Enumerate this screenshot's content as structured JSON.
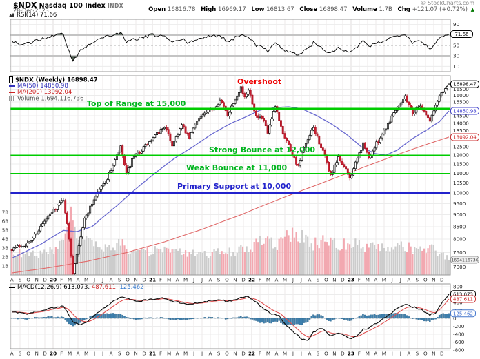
{
  "header": {
    "symbol": "$NDX",
    "name": "Nasdaq 100 Index",
    "exchange": "INDX",
    "date": "28-Dec-2023",
    "copyright": "© StockCharts.com",
    "quote": {
      "open_label": "Open",
      "open_value": "16816.78",
      "high_label": "High",
      "high_value": "16969.17",
      "low_label": "Low",
      "low_value": "16813.67",
      "close_label": "Close",
      "close_value": "16898.47",
      "volume_label": "Volume",
      "volume_value": "1.7B",
      "chg_label": "Chg",
      "chg_value": "+121.07 (+0.72%)",
      "chg_arrow": "▲"
    }
  },
  "rsi_panel": {
    "legend": "RSI(14) 71.66",
    "value_box": "71.66",
    "ticks": [
      90,
      70,
      50,
      30,
      10
    ]
  },
  "main_panel": {
    "legend": {
      "price": "$NDX (Weekly) 16898.47",
      "ma50": "MA(50) 14850.98",
      "ma200": "MA(200) 13092.04",
      "volume": "Volume 1,694,116,736"
    },
    "annotations": {
      "overshoot": "Overshoot",
      "top_of_range": "Top of Range at 15,000",
      "strong_bounce": "Strong Bounce at 12,000",
      "weak_bounce": "Weak Bounce at 11,000",
      "primary_support": "Primary Support at 10,000"
    },
    "price_ticks": [
      16500,
      16000,
      15500,
      15000,
      14500,
      14000,
      13500,
      13000,
      12500,
      12000,
      11500,
      11000,
      10500,
      10000,
      9500,
      9000,
      8500,
      8000,
      7500,
      7000
    ],
    "volume_ticks": [
      "7B",
      "6B",
      "5B",
      "4B",
      "3B",
      "2B",
      "1B"
    ],
    "price_box": "16898.47",
    "ma50_box": "14850.98",
    "ma200_box": "13092.04",
    "volume_box": "1694116736"
  },
  "xaxis": {
    "labels": [
      "A",
      "S",
      "O",
      "N",
      "D",
      "20",
      "F",
      "M",
      "A",
      "M",
      "J",
      "J",
      "A",
      "S",
      "O",
      "N",
      "D",
      "21",
      "F",
      "M",
      "A",
      "M",
      "J",
      "J",
      "A",
      "S",
      "O",
      "N",
      "D",
      "22",
      "F",
      "M",
      "A",
      "M",
      "J",
      "J",
      "A",
      "S",
      "O",
      "N",
      "D",
      "23",
      "F",
      "M",
      "A",
      "M",
      "J",
      "J",
      "A",
      "S",
      "O",
      "N",
      "D"
    ]
  },
  "macd_panel": {
    "legend_name": "MACD(12,26,9)",
    "legend_v1": "613.073,",
    "legend_v2": "487.611,",
    "legend_v3": "125.462",
    "ticks": [
      800,
      600,
      400,
      200,
      0,
      -200,
      -400,
      -600,
      -800
    ],
    "box1": "613.073",
    "box2": "487.611",
    "box3": "125.462"
  },
  "colors": {
    "up_candle_fill": "#ffffff",
    "up_candle_stroke": "#000000",
    "down_candle_fill": "#cc2233",
    "down_candle_stroke": "#aa1122",
    "ma50": "#6a6ad0",
    "ma200": "#e06a6a",
    "level_green": "#00cc00",
    "level_blue": "#2222cc",
    "annotation_red": "#ee0000",
    "annotation_green": "#00b41e",
    "annotation_blue": "#2222cc",
    "hist_fill": "#3d7fad",
    "hist_stroke": "#2b5f83",
    "macd_line": "#111111",
    "signal_line": "#e05050",
    "rsi_line": "#000000",
    "rsi_fill": "#4e5d50",
    "vol_up": "#cccccc",
    "vol_down": "#f2a8b0",
    "grid": "#ececec",
    "panel_border": "#9a9a9a"
  },
  "chart_data": {
    "type": "candlestick",
    "title": "$NDX Nasdaq 100 Index (Weekly)",
    "timeframe": "weekly",
    "x_range": "Aug 2019 - Dec 2023",
    "weeks": 230,
    "log_scale": true,
    "price_axis_range": [
      6740,
      17300
    ],
    "ohlc_latest": {
      "open": 16816.78,
      "high": 16969.17,
      "low": 16813.67,
      "close": 16898.47
    },
    "indicators": {
      "rsi": {
        "period": 14,
        "last": 71.66
      },
      "ma50_last": 14850.98,
      "ma200_last": 13092.04,
      "macd": {
        "params": [
          12,
          26,
          9
        ],
        "macd": 613.073,
        "signal": 487.611,
        "hist": 125.462
      },
      "volume_last": 1694116736
    },
    "levels": [
      {
        "price": 15000,
        "label": "Top of Range at 15,000",
        "color": "#00cc00",
        "width": 2.6
      },
      {
        "price": 12000,
        "label": "Strong Bounce at 12,000",
        "color": "#00cc00",
        "width": 1.8
      },
      {
        "price": 11000,
        "label": "Weak Bounce at 11,000",
        "color": "#00cc00",
        "width": 1.1
      },
      {
        "price": 10000,
        "label": "Primary Support at 10,000",
        "color": "#2222cc",
        "width": 2.6
      }
    ],
    "close_keypoints": [
      [
        0,
        7650
      ],
      [
        9,
        7850
      ],
      [
        17,
        8700
      ],
      [
        27,
        9720
      ],
      [
        32,
        6830
      ],
      [
        38,
        8800
      ],
      [
        45,
        10050
      ],
      [
        50,
        10700
      ],
      [
        57,
        12440
      ],
      [
        60,
        10940
      ],
      [
        63,
        11700
      ],
      [
        66,
        12100
      ],
      [
        73,
        12870
      ],
      [
        80,
        13800
      ],
      [
        84,
        12610
      ],
      [
        89,
        13850
      ],
      [
        93,
        13000
      ],
      [
        97,
        14250
      ],
      [
        106,
        15100
      ],
      [
        109,
        15650
      ],
      [
        113,
        14570
      ],
      [
        120,
        16680
      ],
      [
        122,
        15750
      ],
      [
        124,
        16560
      ],
      [
        128,
        14450
      ],
      [
        132,
        14200
      ],
      [
        134,
        13300
      ],
      [
        138,
        15150
      ],
      [
        142,
        13400
      ],
      [
        146,
        12330
      ],
      [
        150,
        11330
      ],
      [
        152,
        12100
      ],
      [
        158,
        13670
      ],
      [
        164,
        11870
      ],
      [
        167,
        10860
      ],
      [
        171,
        11820
      ],
      [
        173,
        11550
      ],
      [
        177,
        10740
      ],
      [
        180,
        11500
      ],
      [
        184,
        12660
      ],
      [
        187,
        11830
      ],
      [
        193,
        13100
      ],
      [
        197,
        13950
      ],
      [
        201,
        15000
      ],
      [
        206,
        15930
      ],
      [
        210,
        14700
      ],
      [
        214,
        15320
      ],
      [
        219,
        14120
      ],
      [
        224,
        15980
      ],
      [
        227,
        16620
      ],
      [
        229,
        16898.47
      ]
    ],
    "ma50_keypoints": [
      [
        0,
        7300
      ],
      [
        15,
        7800
      ],
      [
        27,
        8350
      ],
      [
        34,
        8300
      ],
      [
        42,
        8500
      ],
      [
        55,
        9400
      ],
      [
        65,
        10200
      ],
      [
        75,
        11000
      ],
      [
        85,
        11800
      ],
      [
        95,
        12500
      ],
      [
        105,
        13300
      ],
      [
        115,
        14000
      ],
      [
        122,
        14400
      ],
      [
        130,
        14900
      ],
      [
        138,
        15100
      ],
      [
        145,
        15150
      ],
      [
        152,
        15000
      ],
      [
        160,
        14500
      ],
      [
        168,
        13900
      ],
      [
        176,
        13200
      ],
      [
        183,
        12500
      ],
      [
        190,
        12100
      ],
      [
        196,
        12000
      ],
      [
        202,
        12300
      ],
      [
        210,
        13000
      ],
      [
        218,
        13600
      ],
      [
        224,
        14100
      ],
      [
        229,
        14850.98
      ]
    ],
    "ma200_keypoints": [
      [
        0,
        6800
      ],
      [
        20,
        6980
      ],
      [
        40,
        7200
      ],
      [
        60,
        7500
      ],
      [
        80,
        7900
      ],
      [
        100,
        8400
      ],
      [
        120,
        9000
      ],
      [
        140,
        9700
      ],
      [
        160,
        10400
      ],
      [
        180,
        11150
      ],
      [
        200,
        11950
      ],
      [
        215,
        12550
      ],
      [
        229,
        13092.04
      ]
    ],
    "volume_b_keypoints": [
      [
        0,
        2.6
      ],
      [
        8,
        2.2
      ],
      [
        16,
        2.4
      ],
      [
        24,
        2.8
      ],
      [
        29,
        4.4
      ],
      [
        31,
        6.6
      ],
      [
        33,
        5.4
      ],
      [
        36,
        4.6
      ],
      [
        40,
        3.6
      ],
      [
        46,
        3.0
      ],
      [
        52,
        2.7
      ],
      [
        57,
        3.6
      ],
      [
        61,
        3.0
      ],
      [
        70,
        2.6
      ],
      [
        80,
        2.8
      ],
      [
        90,
        2.4
      ],
      [
        100,
        2.3
      ],
      [
        110,
        2.5
      ],
      [
        118,
        2.7
      ],
      [
        124,
        2.9
      ],
      [
        128,
        3.6
      ],
      [
        134,
        3.8
      ],
      [
        138,
        3.2
      ],
      [
        144,
        4.2
      ],
      [
        150,
        4.6
      ],
      [
        155,
        3.8
      ],
      [
        158,
        3.4
      ],
      [
        164,
        3.8
      ],
      [
        167,
        4.3
      ],
      [
        172,
        3.4
      ],
      [
        177,
        3.6
      ],
      [
        182,
        3.4
      ],
      [
        187,
        3.2
      ],
      [
        193,
        3.0
      ],
      [
        198,
        2.8
      ],
      [
        203,
        3.0
      ],
      [
        206,
        3.2
      ],
      [
        210,
        2.9
      ],
      [
        214,
        2.7
      ],
      [
        219,
        3.0
      ],
      [
        224,
        2.6
      ],
      [
        227,
        2.1
      ],
      [
        229,
        1.694
      ]
    ],
    "rsi_keypoints": [
      [
        0,
        57
      ],
      [
        6,
        50
      ],
      [
        13,
        60
      ],
      [
        20,
        67
      ],
      [
        27,
        73
      ],
      [
        29,
        45
      ],
      [
        32,
        21
      ],
      [
        36,
        40
      ],
      [
        42,
        56
      ],
      [
        48,
        66
      ],
      [
        53,
        70
      ],
      [
        57,
        75
      ],
      [
        60,
        55
      ],
      [
        64,
        62
      ],
      [
        70,
        66
      ],
      [
        73,
        70
      ],
      [
        80,
        68
      ],
      [
        84,
        55
      ],
      [
        89,
        62
      ],
      [
        93,
        54
      ],
      [
        97,
        63
      ],
      [
        106,
        68
      ],
      [
        109,
        70
      ],
      [
        113,
        57
      ],
      [
        120,
        71
      ],
      [
        124,
        68
      ],
      [
        128,
        49
      ],
      [
        132,
        46
      ],
      [
        134,
        40
      ],
      [
        138,
        57
      ],
      [
        142,
        42
      ],
      [
        146,
        37
      ],
      [
        150,
        32
      ],
      [
        155,
        44
      ],
      [
        158,
        55
      ],
      [
        164,
        41
      ],
      [
        167,
        34
      ],
      [
        171,
        46
      ],
      [
        173,
        42
      ],
      [
        177,
        35
      ],
      [
        180,
        45
      ],
      [
        184,
        57
      ],
      [
        187,
        48
      ],
      [
        193,
        57
      ],
      [
        197,
        62
      ],
      [
        201,
        68
      ],
      [
        206,
        73
      ],
      [
        210,
        56
      ],
      [
        214,
        60
      ],
      [
        219,
        44
      ],
      [
        224,
        62
      ],
      [
        227,
        69
      ],
      [
        229,
        71.66
      ]
    ],
    "macd_keypoints": [
      [
        0,
        170
      ],
      [
        8,
        120
      ],
      [
        16,
        210
      ],
      [
        24,
        290
      ],
      [
        27,
        310
      ],
      [
        30,
        80
      ],
      [
        32,
        -90
      ],
      [
        36,
        -170
      ],
      [
        40,
        -60
      ],
      [
        46,
        180
      ],
      [
        52,
        390
      ],
      [
        57,
        540
      ],
      [
        61,
        500
      ],
      [
        66,
        430
      ],
      [
        73,
        480
      ],
      [
        80,
        510
      ],
      [
        84,
        430
      ],
      [
        89,
        390
      ],
      [
        93,
        350
      ],
      [
        97,
        390
      ],
      [
        103,
        430
      ],
      [
        109,
        470
      ],
      [
        113,
        420
      ],
      [
        120,
        520
      ],
      [
        124,
        545
      ],
      [
        128,
        400
      ],
      [
        132,
        230
      ],
      [
        136,
        120
      ],
      [
        140,
        60
      ],
      [
        144,
        -180
      ],
      [
        148,
        -360
      ],
      [
        152,
        -520
      ],
      [
        155,
        -560
      ],
      [
        158,
        -350
      ],
      [
        162,
        -240
      ],
      [
        167,
        -430
      ],
      [
        171,
        -370
      ],
      [
        174,
        -420
      ],
      [
        177,
        -520
      ],
      [
        180,
        -470
      ],
      [
        184,
        -280
      ],
      [
        187,
        -240
      ],
      [
        193,
        -60
      ],
      [
        197,
        60
      ],
      [
        201,
        230
      ],
      [
        206,
        350
      ],
      [
        210,
        290
      ],
      [
        214,
        230
      ],
      [
        219,
        90
      ],
      [
        222,
        140
      ],
      [
        225,
        380
      ],
      [
        229,
        613.073
      ]
    ]
  }
}
